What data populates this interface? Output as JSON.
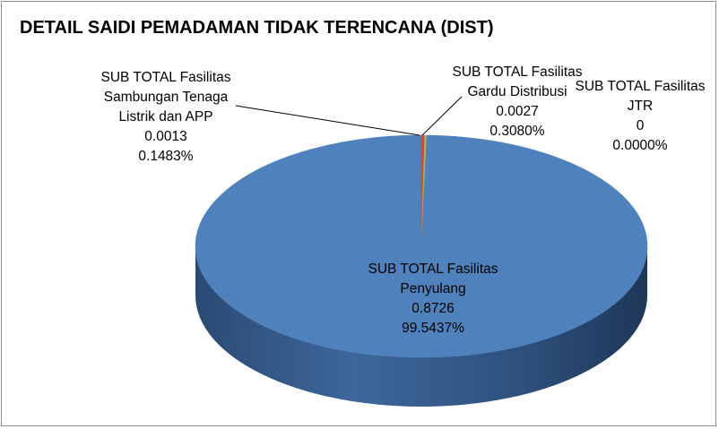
{
  "chart_data": {
    "type": "pie",
    "title": "DETAIL SAIDI PEMADAMAN TIDAK TERENCANA (DIST)",
    "slices": [
      {
        "name": "SUB TOTAL Fasilitas Penyulang",
        "name_lines": [
          "SUB TOTAL Fasilitas",
          "Penyulang"
        ],
        "value": "0.8726",
        "percent": "99.5437%",
        "share": 99.5437,
        "color": "#4f81bd"
      },
      {
        "name": "SUB TOTAL Fasilitas Sambungan Tenaga Listrik dan APP",
        "name_lines": [
          "SUB TOTAL Fasilitas",
          "Sambungan Tenaga",
          "Listrik dan APP"
        ],
        "value": "0.0013",
        "percent": "0.1483%",
        "share": 0.1483,
        "color": "#9bbb59"
      },
      {
        "name": "SUB TOTAL Fasilitas Gardu Distribusi",
        "name_lines": [
          "SUB TOTAL Fasilitas",
          "Gardu Distribusi"
        ],
        "value": "0.0027",
        "percent": "0.3080%",
        "share": 0.308,
        "color": "#c0504d"
      },
      {
        "name": "SUB TOTAL Fasilitas JTR",
        "name_lines": [
          "SUB TOTAL Fasilitas",
          "JTR"
        ],
        "value": "0",
        "percent": "0.0000%",
        "share": 0.0,
        "color": "#8064a2"
      }
    ],
    "legend": "none",
    "style": "3d-pie"
  }
}
